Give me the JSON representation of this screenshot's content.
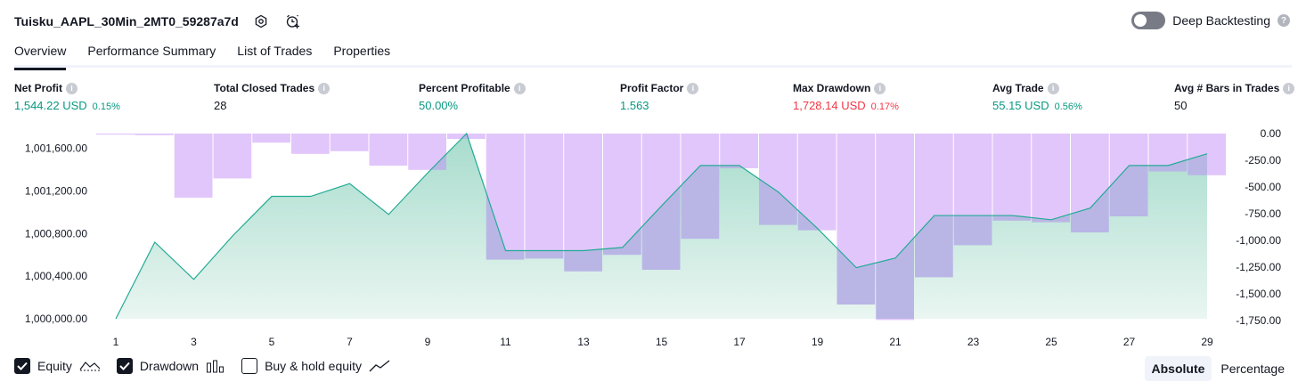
{
  "header": {
    "strategy_name": "Tuisku_AAPL_30Min_2MT0_59287a7d"
  },
  "deep_backtesting": {
    "label": "Deep Backtesting",
    "enabled": false,
    "help": "?"
  },
  "tabs": [
    {
      "label": "Overview",
      "active": true
    },
    {
      "label": "Performance Summary",
      "active": false
    },
    {
      "label": "List of Trades",
      "active": false
    },
    {
      "label": "Properties",
      "active": false
    }
  ],
  "stats": {
    "net_profit": {
      "label": "Net Profit",
      "value": "1,544.22 USD",
      "pct": "0.15%"
    },
    "total_closed_trades": {
      "label": "Total Closed Trades",
      "value": "28"
    },
    "percent_profitable": {
      "label": "Percent Profitable",
      "value": "50.00%"
    },
    "profit_factor": {
      "label": "Profit Factor",
      "value": "1.563"
    },
    "max_drawdown": {
      "label": "Max Drawdown",
      "value": "1,728.14 USD",
      "pct": "0.17%"
    },
    "avg_trade": {
      "label": "Avg Trade",
      "value": "55.15 USD",
      "pct": "0.56%"
    },
    "avg_bars": {
      "label": "Avg # Bars in Trades",
      "value": "50"
    }
  },
  "legend": {
    "equity": "Equity",
    "drawdown": "Drawdown",
    "buy_hold": "Buy & hold equity",
    "equity_checked": true,
    "drawdown_checked": true,
    "buy_hold_checked": false
  },
  "scale_mode": {
    "absolute": "Absolute",
    "percentage": "Percentage",
    "selected": "Absolute"
  },
  "colors": {
    "equity_line": "#22ab94",
    "equity_fill_top": "#a7dccc",
    "drawdown_fill": "#e1c6fb",
    "overlap_fill": "#b9b6e6",
    "axis_text": "#131722",
    "positive": "#089981",
    "negative": "#f23645"
  },
  "chart_data": {
    "type": "area",
    "x": [
      1,
      2,
      3,
      4,
      5,
      6,
      7,
      8,
      9,
      10,
      11,
      12,
      13,
      14,
      15,
      16,
      17,
      18,
      19,
      20,
      21,
      22,
      23,
      24,
      25,
      26,
      27,
      28,
      29
    ],
    "x_tick_labels": [
      "1",
      "3",
      "5",
      "7",
      "9",
      "11",
      "13",
      "15",
      "17",
      "19",
      "21",
      "23",
      "25",
      "27",
      "29"
    ],
    "series": [
      {
        "name": "Equity",
        "axis": "left",
        "values": [
          1000000,
          1000720,
          1000370,
          1000780,
          1001150,
          1001150,
          1001270,
          1000980,
          1001370,
          1001740,
          1000640,
          1000640,
          1000640,
          1000670,
          1001060,
          1001440,
          1001440,
          1001190,
          1000850,
          1000480,
          1000570,
          1000970,
          1000970,
          1000970,
          1000930,
          1001040,
          1001440,
          1001440,
          1001550
        ]
      },
      {
        "name": "Drawdown",
        "axis": "right",
        "values": [
          -10,
          -15,
          -600,
          -420,
          -85,
          -190,
          -165,
          -300,
          -340,
          -50,
          -1180,
          -1170,
          -1290,
          -1135,
          -1275,
          -985,
          -325,
          -855,
          -905,
          -1600,
          -1745,
          -1345,
          -1045,
          -815,
          -830,
          -925,
          -775,
          -355,
          -390
        ]
      }
    ],
    "left_axis": {
      "ticks": [
        "1,000,000.00",
        "1,000,400.00",
        "1,000,800.00",
        "1,001,200.00",
        "1,001,600.00"
      ],
      "range": [
        1000000,
        1001740
      ]
    },
    "right_axis": {
      "ticks": [
        "0.00",
        "-250.00",
        "-500.00",
        "-750.00",
        "-1,000.00",
        "-1,250.00",
        "-1,500.00",
        "-1,750.00"
      ],
      "range": [
        0,
        -1750
      ]
    }
  }
}
